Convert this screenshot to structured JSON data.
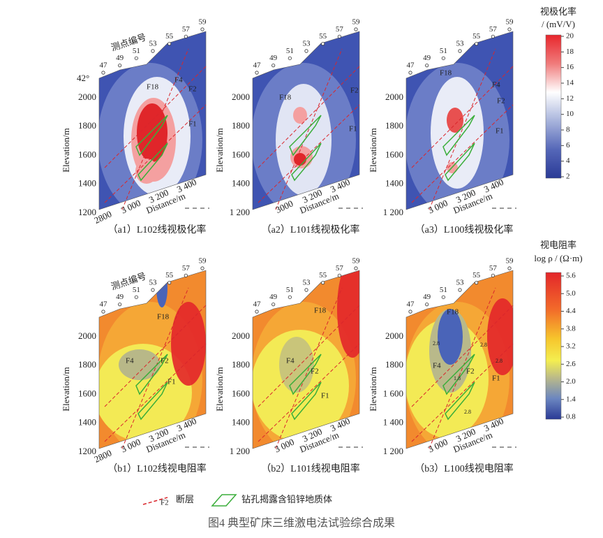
{
  "colorbar_top": {
    "title": "视极化率",
    "unit": "/ (mV/V)",
    "ticks": [
      "20",
      "18",
      "16",
      "14",
      "12",
      "10",
      "8",
      "6",
      "4",
      "2"
    ]
  },
  "colorbar_bottom": {
    "title": "视电阻率",
    "unit": "log ρ / (Ω·m)",
    "ticks": [
      "5.6",
      "5.0",
      "4.4",
      "3.8",
      "3.2",
      "2.6",
      "2.0",
      "1.4",
      "0.8"
    ]
  },
  "panels": [
    {
      "caption": "（a1）L102线视极化率",
      "angle": "42°",
      "station_label": "测点编号",
      "stations": [
        "47",
        "49",
        "51",
        "53",
        "55",
        "57",
        "59"
      ],
      "y_axis": "Elevation/m",
      "yticks": [
        "2000",
        "1800",
        "1600",
        "1400",
        "1200"
      ],
      "x_axis": "Distance/m",
      "xticks": [
        "2800",
        "3 000",
        "3 200",
        "3 400"
      ],
      "fault_labels": [
        "F18",
        "F4",
        "F2",
        "F1"
      ]
    },
    {
      "caption": "（a2）L101线视极化率",
      "stations": [
        "47",
        "49",
        "51",
        "53",
        "55",
        "57",
        "59"
      ],
      "y_axis": "Elevation/m",
      "yticks": [
        "2000",
        "1800",
        "1600",
        "1400",
        "1 200"
      ],
      "x_axis": "Distance/m",
      "xticks": [
        "3000",
        "3 200",
        "3 400"
      ],
      "fault_labels": [
        "F18",
        "F2",
        "F1"
      ]
    },
    {
      "caption": "（a3）L100线视极化率",
      "stations": [
        "47",
        "49",
        "51",
        "53",
        "55",
        "57",
        "59"
      ],
      "y_axis": "Elevation/m",
      "yticks": [
        "2000",
        "1800",
        "1600",
        "1400",
        "1 200"
      ],
      "x_axis": "Distance/m",
      "xticks": [
        "3 000",
        "3 200",
        "3 400"
      ],
      "fault_labels": [
        "F18",
        "F4",
        "F2",
        "F1"
      ]
    },
    {
      "caption": "（b1）L102线视电阻率",
      "station_label": "测点编号",
      "stations": [
        "47",
        "49",
        "51",
        "53",
        "55",
        "57",
        "59"
      ],
      "y_axis": "Elevation/m",
      "yticks": [
        "2000",
        "1800",
        "1600",
        "1400",
        "1200"
      ],
      "x_axis": "Distance/m",
      "xticks": [
        "2800",
        "3 000",
        "3 200",
        "3 400"
      ],
      "fault_labels": [
        "F18",
        "F4",
        "F2",
        "F1"
      ]
    },
    {
      "caption": "（b2）L101线视电阻率",
      "stations": [
        "47",
        "49",
        "51",
        "53",
        "55",
        "57",
        "59"
      ],
      "y_axis": "Elevation/m",
      "yticks": [
        "2000",
        "1800",
        "1600",
        "1400",
        "1 200"
      ],
      "x_axis": "Distance/m",
      "xticks": [
        "3 000",
        "3 200",
        "3 400"
      ],
      "fault_labels": [
        "F18",
        "F4",
        "F2",
        "F1"
      ]
    },
    {
      "caption": "（b3）L100线视电阻率",
      "stations": [
        "47",
        "49",
        "51",
        "53",
        "55",
        "57",
        "59"
      ],
      "y_axis": "Elevation/m",
      "yticks": [
        "2000",
        "1800",
        "1 600",
        "1 400",
        "1 200"
      ],
      "x_axis": "Distance/m",
      "xticks": [
        "3 000",
        "3 200",
        "3 400"
      ],
      "fault_labels": [
        "F18",
        "F4",
        "F2",
        "F1"
      ],
      "contour_labels": [
        "2.8",
        "2.8",
        "2.8",
        "1.8",
        "2.8"
      ]
    }
  ],
  "legend": {
    "fault_symbol": "F2",
    "fault": "断层",
    "body": "钻孔揭露含铅锌地质体"
  },
  "figure_caption": "图4 典型矿床三维激电法试验综合成果"
}
